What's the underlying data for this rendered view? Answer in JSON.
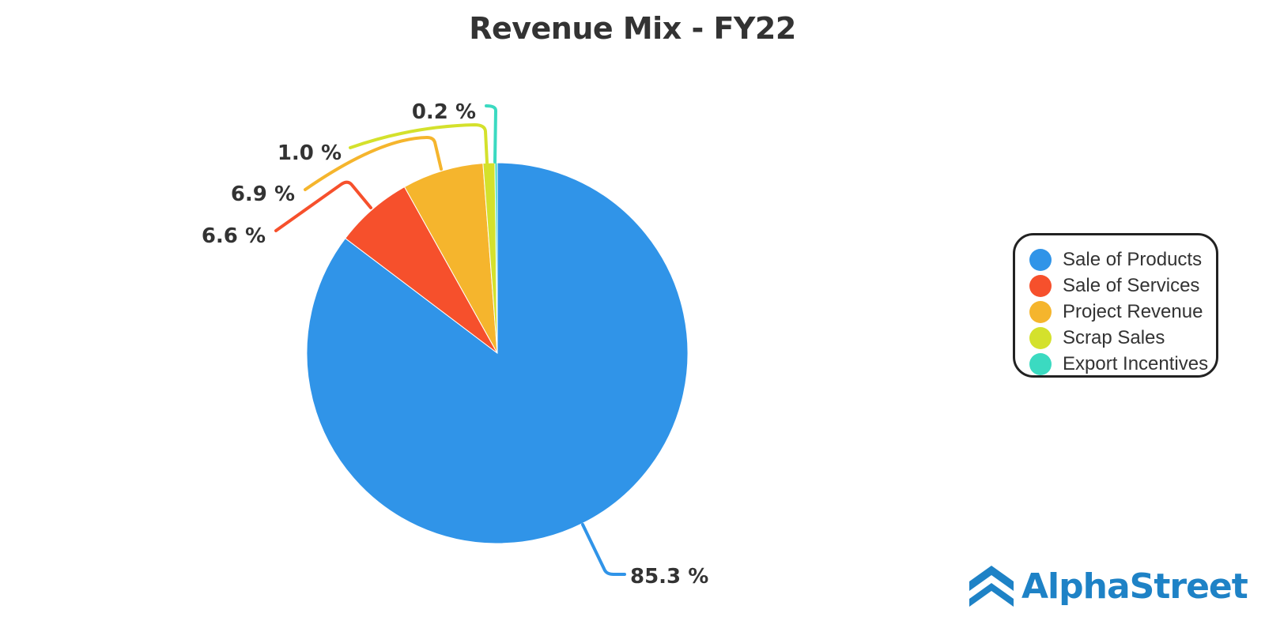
{
  "chart_data": {
    "type": "pie",
    "title": "Revenue Mix - FY22",
    "legend_position": "right",
    "slices": [
      {
        "name": "Sale of Products",
        "value": 85.3,
        "label": "85.3 %",
        "color": "#3094e8"
      },
      {
        "name": "Sale of Services",
        "value": 6.6,
        "label": "6.6 %",
        "color": "#f6502c"
      },
      {
        "name": "Project Revenue",
        "value": 6.9,
        "label": "6.9 %",
        "color": "#f5b52d"
      },
      {
        "name": "Scrap Sales",
        "value": 1.0,
        "label": "1.0 %",
        "color": "#d4e12c"
      },
      {
        "name": "Export Incentives",
        "value": 0.2,
        "label": "0.2 %",
        "color": "#3bdac1"
      }
    ]
  },
  "brand": {
    "name": "AlphaStreet",
    "color": "#1e82c6",
    "icon": "alphastreet-logo-icon"
  }
}
